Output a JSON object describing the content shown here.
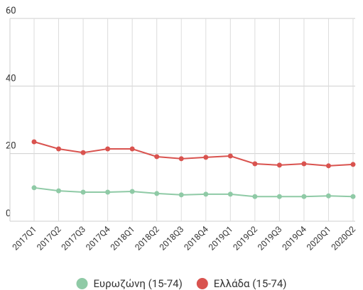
{
  "chart_data": {
    "type": "line",
    "categories": [
      "2017Q1",
      "2017Q2",
      "2017Q3",
      "2017Q4",
      "2018Q1",
      "2018Q2",
      "2018Q3",
      "2018Q4",
      "2019Q1",
      "2019Q2",
      "2019Q3",
      "2019Q4",
      "2020Q1",
      "2020Q2"
    ],
    "series": [
      {
        "name": "Ευρωζώνη (15-74)",
        "color": "#8fcaa6",
        "values": [
          9.9,
          9.0,
          8.6,
          8.6,
          8.8,
          8.2,
          7.8,
          8.0,
          8.0,
          7.3,
          7.3,
          7.3,
          7.5,
          7.3
        ]
      },
      {
        "name": "Ελλάδα (15-74)",
        "color": "#d9534f",
        "values": [
          23.5,
          21.4,
          20.3,
          21.4,
          21.4,
          19.1,
          18.5,
          18.9,
          19.3,
          17.0,
          16.6,
          17.0,
          16.4,
          16.8
        ]
      }
    ],
    "ylim": [
      0,
      60
    ],
    "yticks": [
      0,
      20,
      40,
      60
    ],
    "grid": true,
    "legend": "bottom"
  }
}
